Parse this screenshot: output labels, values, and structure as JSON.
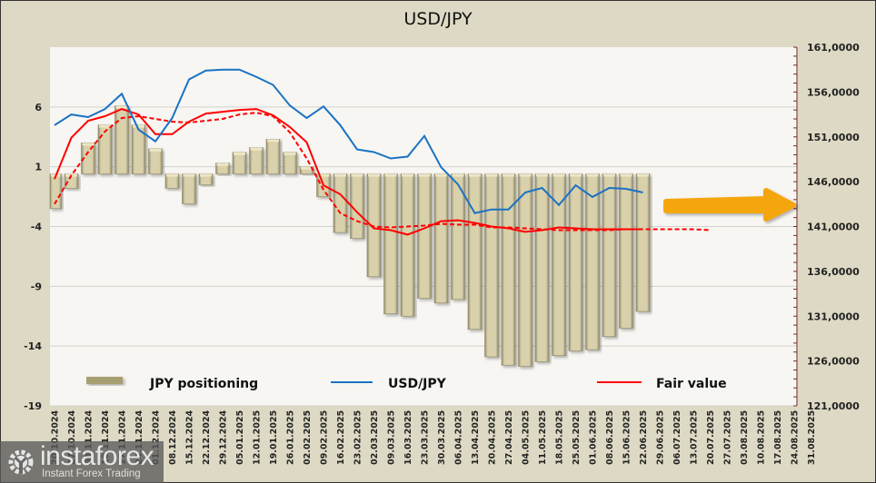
{
  "chart_data": {
    "type": "bar",
    "title": "USD/JPY",
    "categories": [
      "20.10.2024",
      "27.10.2024",
      "03.11.2024",
      "10.11.2024",
      "17.11.2024",
      "24.11.2024",
      "01.12.2024",
      "08.12.2024",
      "15.12.2024",
      "22.12.2024",
      "29.12.2024",
      "05.01.2025",
      "12.01.2025",
      "19.01.2025",
      "26.01.2025",
      "02.02.2025",
      "09.02.2025",
      "16.02.2025",
      "23.02.2025",
      "02.03.2025",
      "09.03.2025",
      "16.03.2025",
      "23.03.2025",
      "30.03.2025",
      "06.04.2025",
      "13.04.2025",
      "20.04.2025",
      "27.04.2025",
      "04.05.2025",
      "11.05.2025",
      "18.05.2025",
      "25.05.2025",
      "01.06.2025",
      "08.06.2025",
      "15.06.2025",
      "22.06.2025",
      "29.06.2025",
      "06.07.2025",
      "13.07.2025",
      "20.07.2025",
      "27.07.2025",
      "03.08.2025",
      "10.08.2025",
      "17.08.2025",
      "24.08.2025",
      "31.08.2025"
    ],
    "series": [
      {
        "name": "JPY positioning",
        "type": "bar",
        "axis": "left",
        "color": "#c9c19a",
        "values": [
          -2.5,
          -0.8,
          3.0,
          4.5,
          6.1,
          4.5,
          2.5,
          -0.8,
          -2.1,
          -0.5,
          1.3,
          2.2,
          2.6,
          3.3,
          2.2,
          1.0,
          -1.5,
          -4.5,
          -5.0,
          -8.2,
          -11.3,
          -11.5,
          -10.0,
          -10.4,
          -10.1,
          -12.6,
          -14.9,
          -15.6,
          -15.7,
          -15.3,
          -14.8,
          -14.4,
          -14.3,
          -13.2,
          -12.5,
          -11.1
        ]
      },
      {
        "name": "USD/JPY",
        "type": "line",
        "axis": "right",
        "color": "#1a72c4",
        "values": [
          152.3,
          153.5,
          153.2,
          154.1,
          155.8,
          151.8,
          150.5,
          153.1,
          157.4,
          158.4,
          158.5,
          158.5,
          157.7,
          156.8,
          154.5,
          153.1,
          154.4,
          152.3,
          149.6,
          149.3,
          148.6,
          148.8,
          151.1,
          147.6,
          145.7,
          142.5,
          142.9,
          142.9,
          144.8,
          145.3,
          143.4,
          145.6,
          144.3,
          145.3,
          145.2,
          144.8
        ]
      },
      {
        "name": "Fair value",
        "type": "line",
        "axis": "right",
        "color": "#ff0000",
        "values": [
          146.3,
          150.9,
          152.8,
          153.3,
          154.1,
          153.5,
          151.3,
          151.3,
          152.7,
          153.6,
          153.8,
          154.0,
          154.1,
          153.4,
          152.1,
          150.4,
          145.6,
          144.6,
          142.6,
          140.8,
          140.6,
          140.1,
          140.8,
          141.6,
          141.7,
          141.4,
          141.0,
          140.8,
          140.4,
          140.6,
          140.9,
          140.8,
          140.7,
          140.7,
          140.7,
          140.7
        ]
      },
      {
        "name": "Fair value (projection)",
        "type": "line",
        "dashed": true,
        "axis": "right",
        "color": "#ff0000",
        "values": [
          143.5,
          146.7,
          149.3,
          151.6,
          153.1,
          153.3,
          153.0,
          152.7,
          152.6,
          152.8,
          153.0,
          153.5,
          153.7,
          153.3,
          151.5,
          148.6,
          145.1,
          142.5,
          141.6,
          141.0,
          140.9,
          141.0,
          141.1,
          141.3,
          141.2,
          141.2,
          140.9,
          140.9,
          140.8,
          140.7,
          140.6,
          140.6,
          140.6,
          140.6,
          140.7,
          140.7,
          140.7,
          140.7,
          140.7,
          140.6
        ]
      }
    ],
    "y_left": {
      "ticks": [
        "6",
        "1",
        "-4",
        "-9",
        "-14",
        "-19"
      ],
      "range": [
        -19,
        11
      ]
    },
    "y_right": {
      "ticks": [
        "161,0000",
        "156,0000",
        "151,0000",
        "146,0000",
        "141,0000",
        "136,0000",
        "131,0000",
        "126,0000",
        "121,0000"
      ],
      "range": [
        121,
        161
      ]
    },
    "legend": [
      {
        "label": "JPY positioning",
        "kind": "bar"
      },
      {
        "label": "USD/JPY",
        "kind": "line"
      },
      {
        "label": "Fair value",
        "kind": "line"
      }
    ],
    "legend_position": "bottom-inside",
    "annotation": "orange arrow pointing right (forecast direction)",
    "grid": true
  },
  "watermark": {
    "brand": "instaforex",
    "tagline": "Instant Forex Trading"
  },
  "colors": {
    "bar": "#c9c19a",
    "usdjpy": "#1a72c4",
    "fair_value": "#ff0000",
    "arrow": "#f5a611",
    "background": "#ddd9c4",
    "plot": "#f7f6f2"
  }
}
